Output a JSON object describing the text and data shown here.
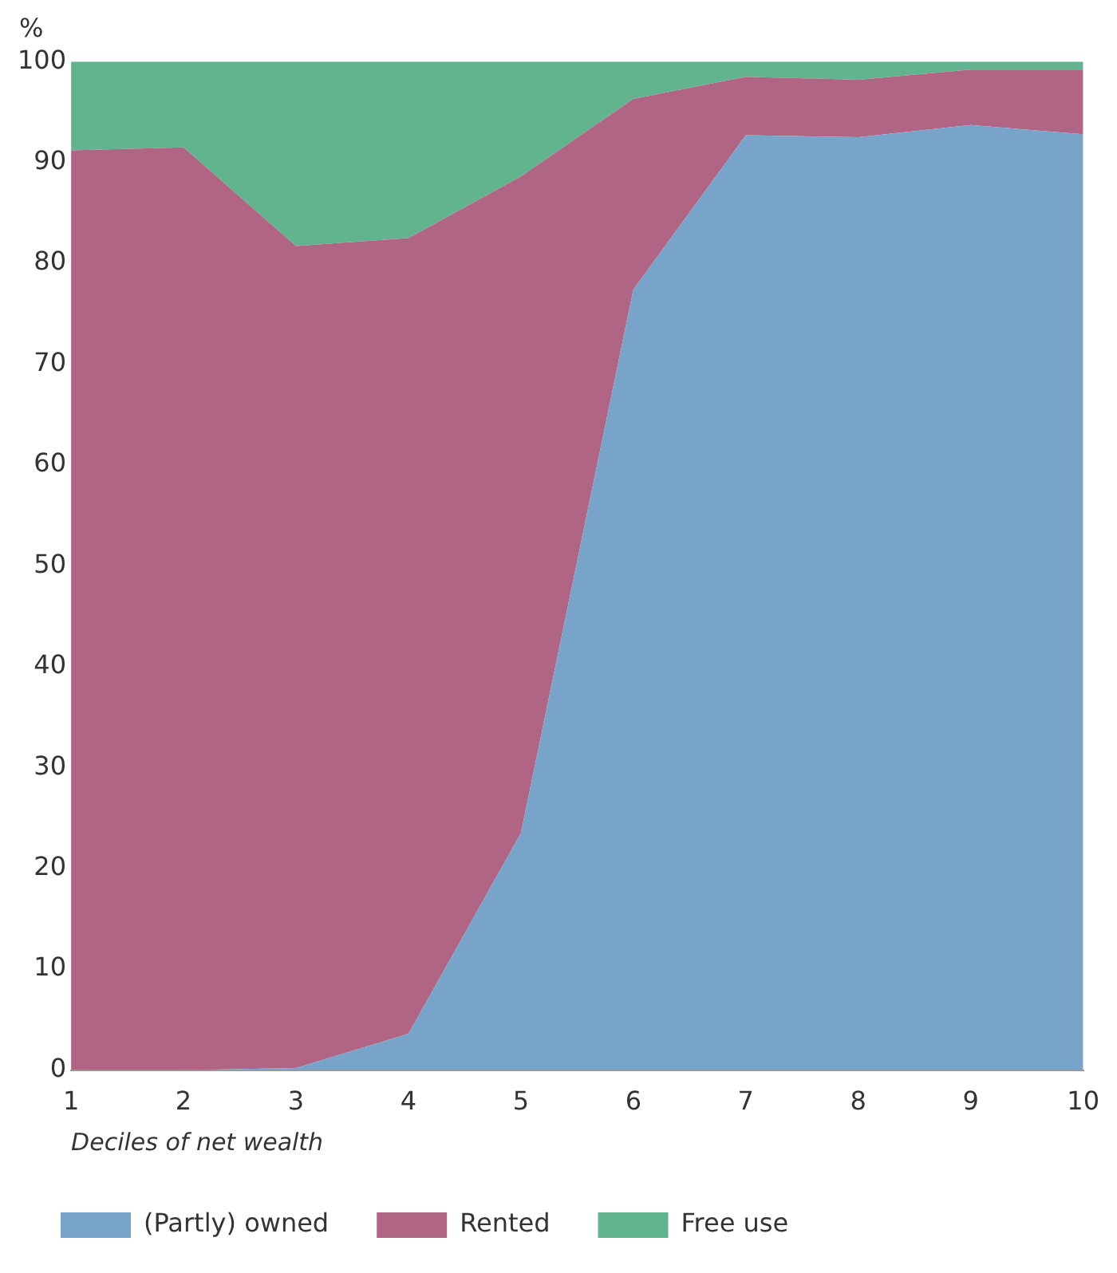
{
  "chart_data": {
    "type": "area",
    "stacked": true,
    "ylabel": "%",
    "xlabel": "Deciles of net wealth",
    "x": [
      1,
      2,
      3,
      4,
      5,
      6,
      7,
      8,
      9,
      10
    ],
    "series": [
      {
        "name": "(Partly) owned",
        "color": "#77a4c8",
        "values": [
          0,
          0,
          0.2,
          3.6,
          23.5,
          77.4,
          92.7,
          92.5,
          93.7,
          92.8
        ]
      },
      {
        "name": "Rented",
        "color": "#b06584",
        "values": [
          91.2,
          91.5,
          81.5,
          78.9,
          65.1,
          18.9,
          5.8,
          5.7,
          5.5,
          6.4
        ]
      },
      {
        "name": "Free use",
        "color": "#62b48e",
        "values": [
          8.8,
          8.5,
          18.3,
          17.5,
          11.4,
          3.7,
          1.5,
          1.8,
          0.8,
          0.8
        ]
      }
    ],
    "xlim": [
      1,
      10
    ],
    "xticks": [
      1,
      2,
      3,
      4,
      5,
      6,
      7,
      8,
      9,
      10
    ],
    "ylim": [
      0,
      100
    ],
    "yticks": [
      0,
      10,
      20,
      30,
      40,
      50,
      60,
      70,
      80,
      90,
      100
    ],
    "grid": false,
    "legend": "bottom"
  }
}
